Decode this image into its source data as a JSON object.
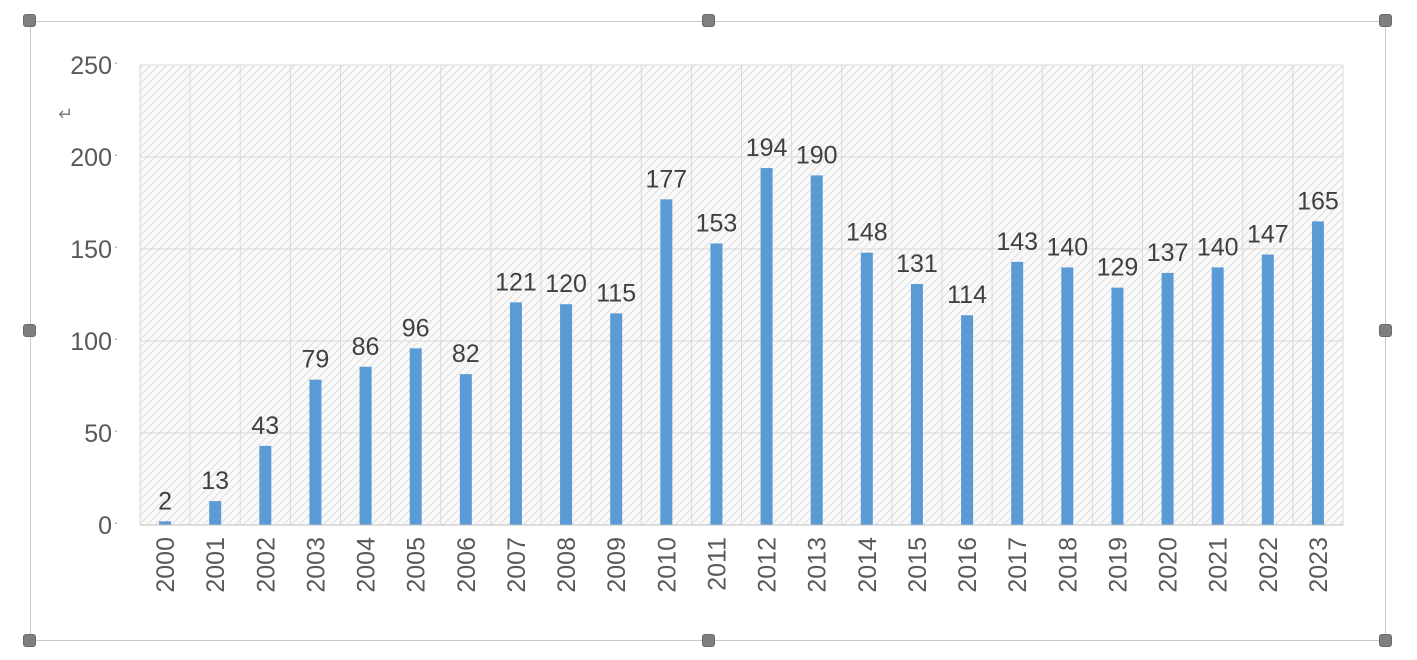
{
  "colors": {
    "bar": "#5b9bd5",
    "grid": "#d9d9d9",
    "plot_texture": "#dcdcdc",
    "frame": "#c8c8c8",
    "handle": "#7f7f7f"
  },
  "chart_data": {
    "type": "bar",
    "title": "",
    "xlabel": "",
    "ylabel": "",
    "ylim": [
      0,
      250
    ],
    "yticks": [
      0,
      50,
      100,
      150,
      200,
      250
    ],
    "y_tick_labels": [
      "0",
      "50",
      "100",
      "150",
      "200",
      "250"
    ],
    "grid": true,
    "legend": "none",
    "categories": [
      "2000",
      "2001",
      "2002",
      "2003",
      "2004",
      "2005",
      "2006",
      "2007",
      "2008",
      "2009",
      "2010",
      "2011",
      "2012",
      "2013",
      "2014",
      "2015",
      "2016",
      "2017",
      "2018",
      "2019",
      "2020",
      "2021",
      "2022",
      "2023"
    ],
    "values": [
      2,
      13,
      43,
      79,
      86,
      96,
      82,
      121,
      120,
      115,
      177,
      153,
      194,
      190,
      148,
      131,
      114,
      143,
      140,
      129,
      137,
      140,
      147,
      165
    ],
    "data_labels": [
      "2",
      "13",
      "43",
      "79",
      "86",
      "96",
      "82",
      "121",
      "120",
      "115",
      "177",
      "153",
      "194",
      "190",
      "148",
      "131",
      "114",
      "143",
      "140",
      "129",
      "137",
      "140",
      "147",
      "165"
    ],
    "paragraph_mark": "↵"
  }
}
